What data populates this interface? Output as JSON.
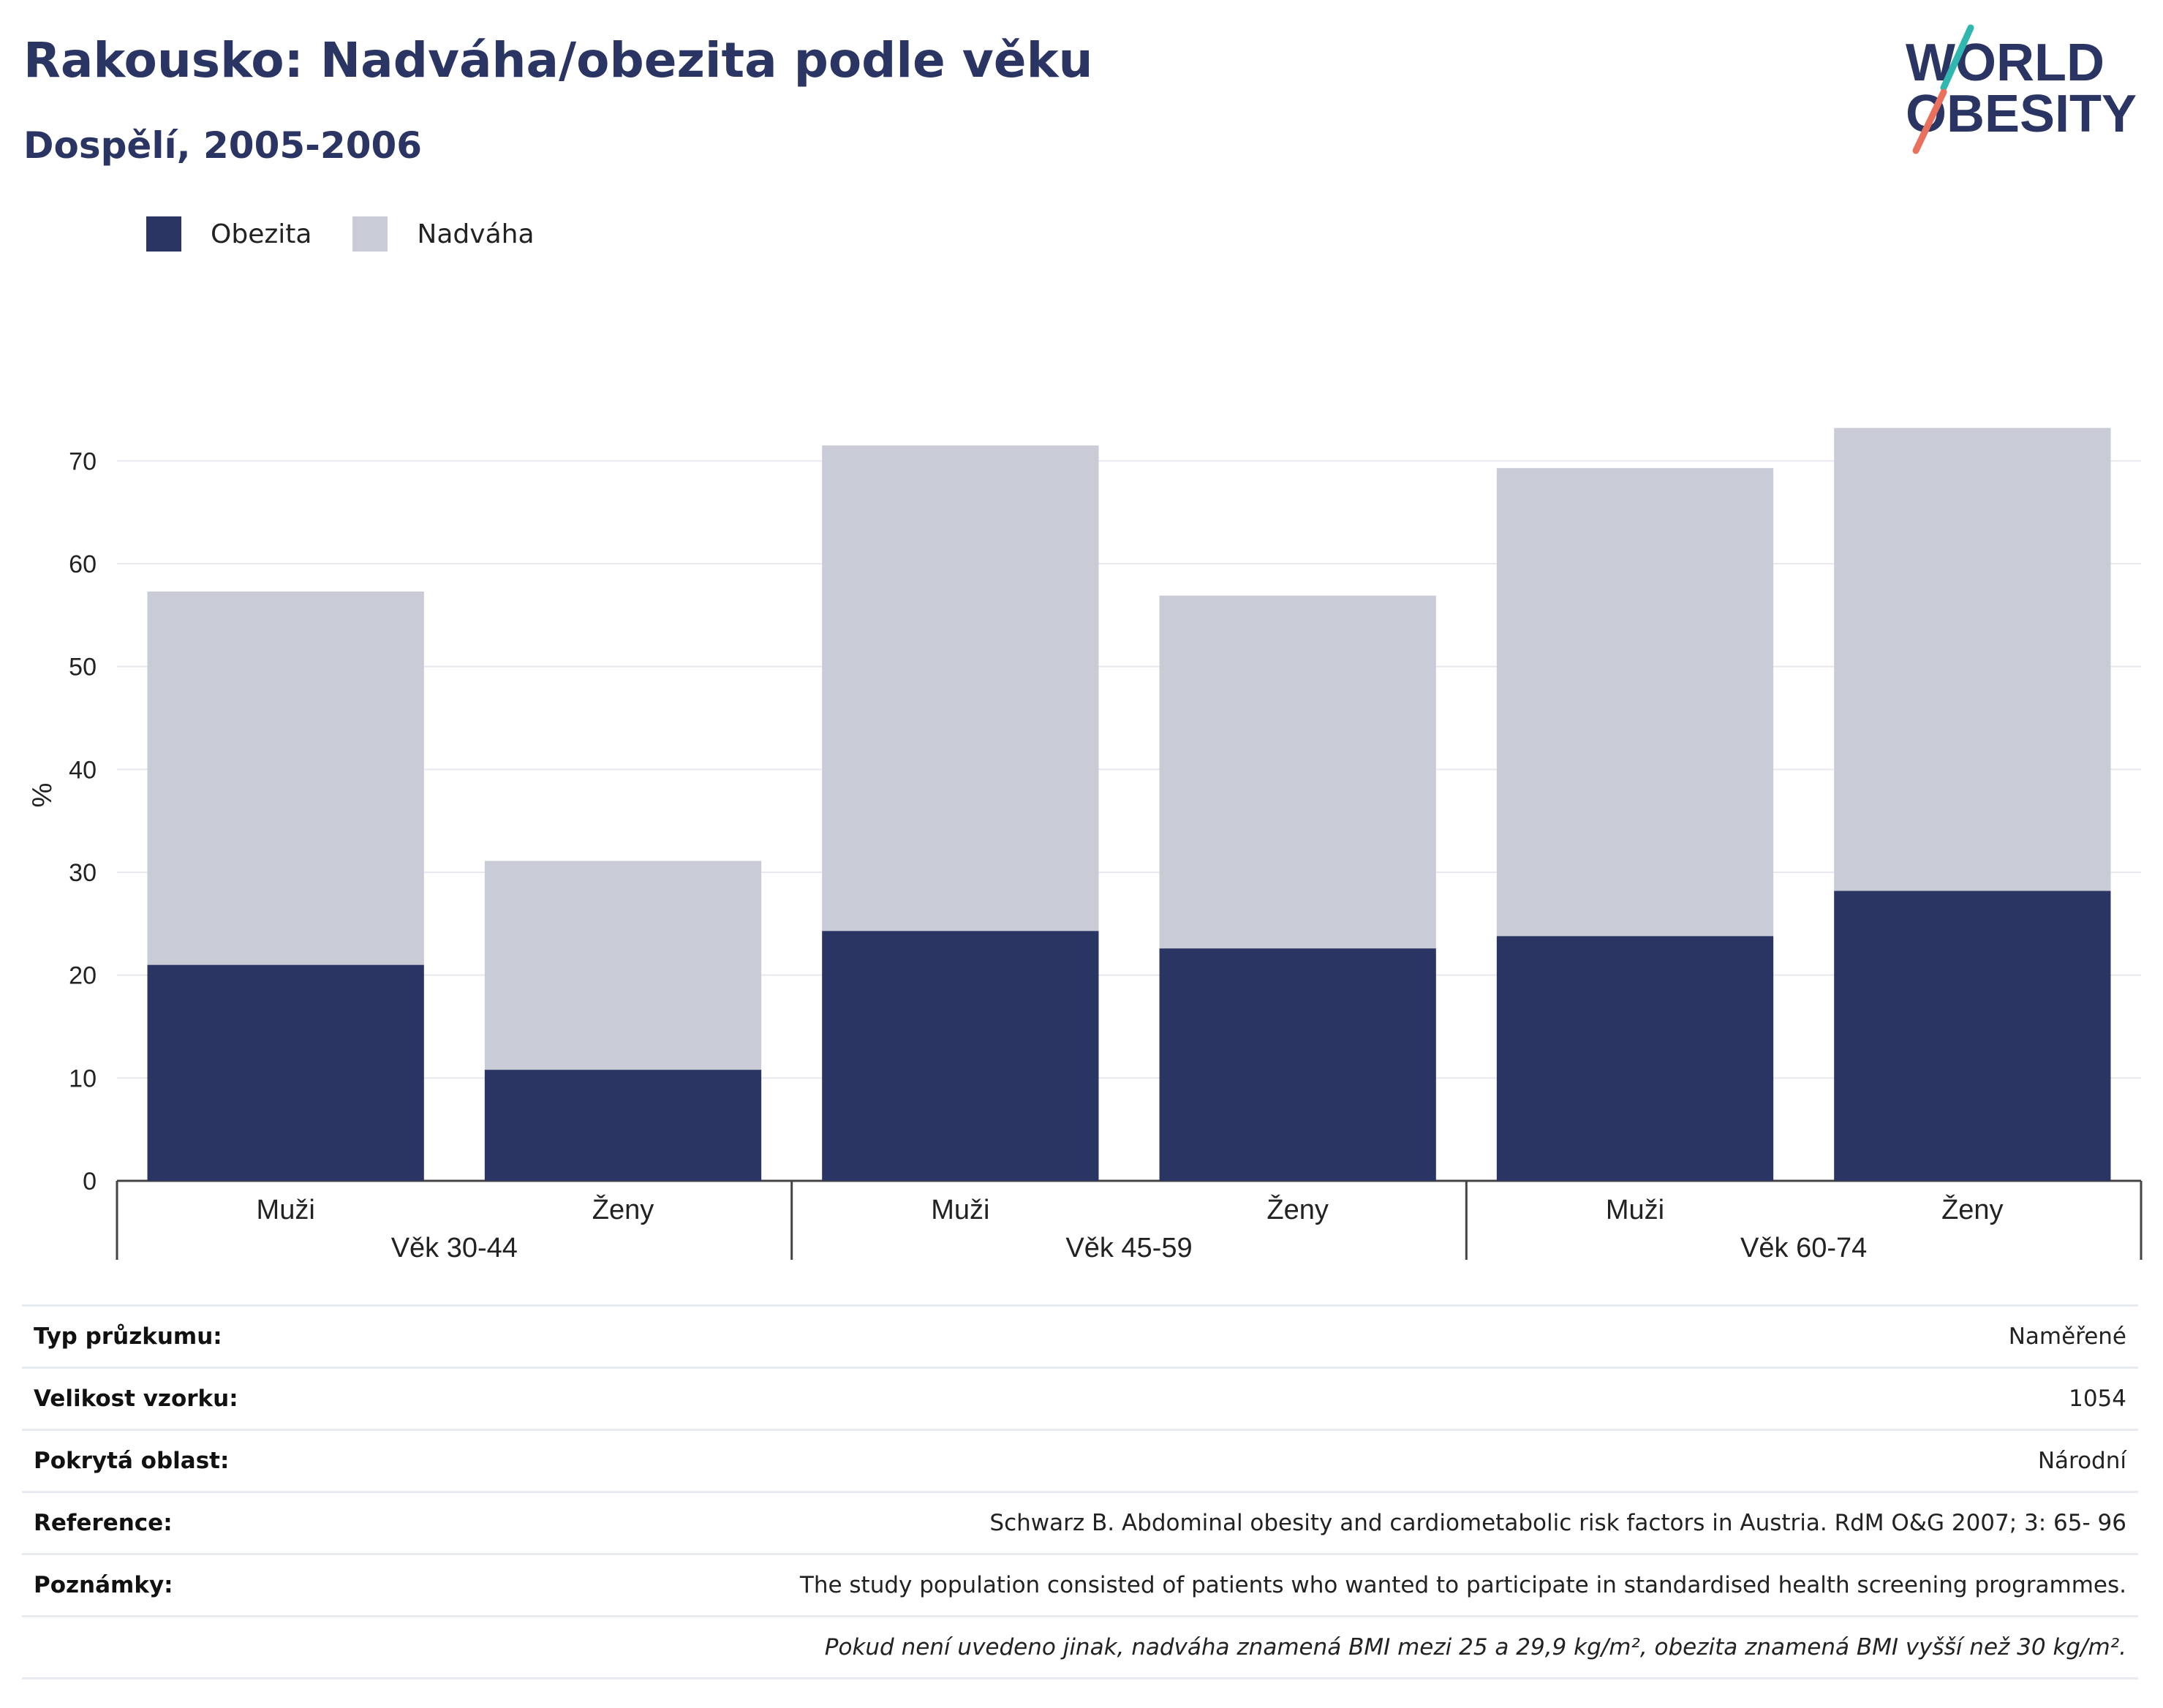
{
  "header": {
    "title": "Rakousko: Nadváha/obezita podle věku",
    "subtitle": "Dospělí, 2005-2006"
  },
  "logo": {
    "line1": "WORLD",
    "line2": "OBESITY"
  },
  "colors": {
    "obesity": "#2a3563",
    "overweight": "#c9cbd7",
    "title": "#2a3563",
    "logo_teal": "#2fb7b0",
    "logo_coral": "#e8705c"
  },
  "legend": [
    {
      "label": "Obezita",
      "color": "#2a3563"
    },
    {
      "label": "Nadváha",
      "color": "#c9cbd7"
    }
  ],
  "chart_data": {
    "type": "bar",
    "stacked": true,
    "ylabel": "%",
    "ylim": [
      0,
      75
    ],
    "yticks": [
      0,
      10,
      20,
      30,
      40,
      50,
      60,
      70
    ],
    "grid": true,
    "legend_position": "top-left",
    "categories": [
      "Muži",
      "Ženy",
      "Muži",
      "Ženy",
      "Muži",
      "Ženy"
    ],
    "groups": [
      {
        "label": "Věk 30-44",
        "span": [
          0,
          1
        ]
      },
      {
        "label": "Věk 45-59",
        "span": [
          2,
          3
        ]
      },
      {
        "label": "Věk 60-74",
        "span": [
          4,
          5
        ]
      }
    ],
    "series": [
      {
        "name": "Obezita",
        "values": [
          21.0,
          10.8,
          24.3,
          22.6,
          23.8,
          28.2
        ]
      },
      {
        "name": "Nadváha",
        "values": [
          36.3,
          20.3,
          47.2,
          34.3,
          45.5,
          45.0
        ]
      }
    ]
  },
  "details": [
    {
      "label": "Typ průzkumu:",
      "value": "Naměřené"
    },
    {
      "label": "Velikost vzorku:",
      "value": "1054"
    },
    {
      "label": "Pokrytá oblast:",
      "value": "Národní"
    },
    {
      "label": "Reference:",
      "value": "Schwarz B. Abdominal obesity and cardiometabolic risk factors in Austria. RdM O&G 2007; 3: 65- 96"
    },
    {
      "label": "Poznámky:",
      "value": "The study population consisted of patients who wanted to participate in standardised health screening programmes."
    }
  ],
  "footnote": "Pokud není uvedeno jinak, nadváha znamená BMI mezi 25 a 29,9 kg/m², obezita znamená BMI vyšší než 30 kg/m²."
}
